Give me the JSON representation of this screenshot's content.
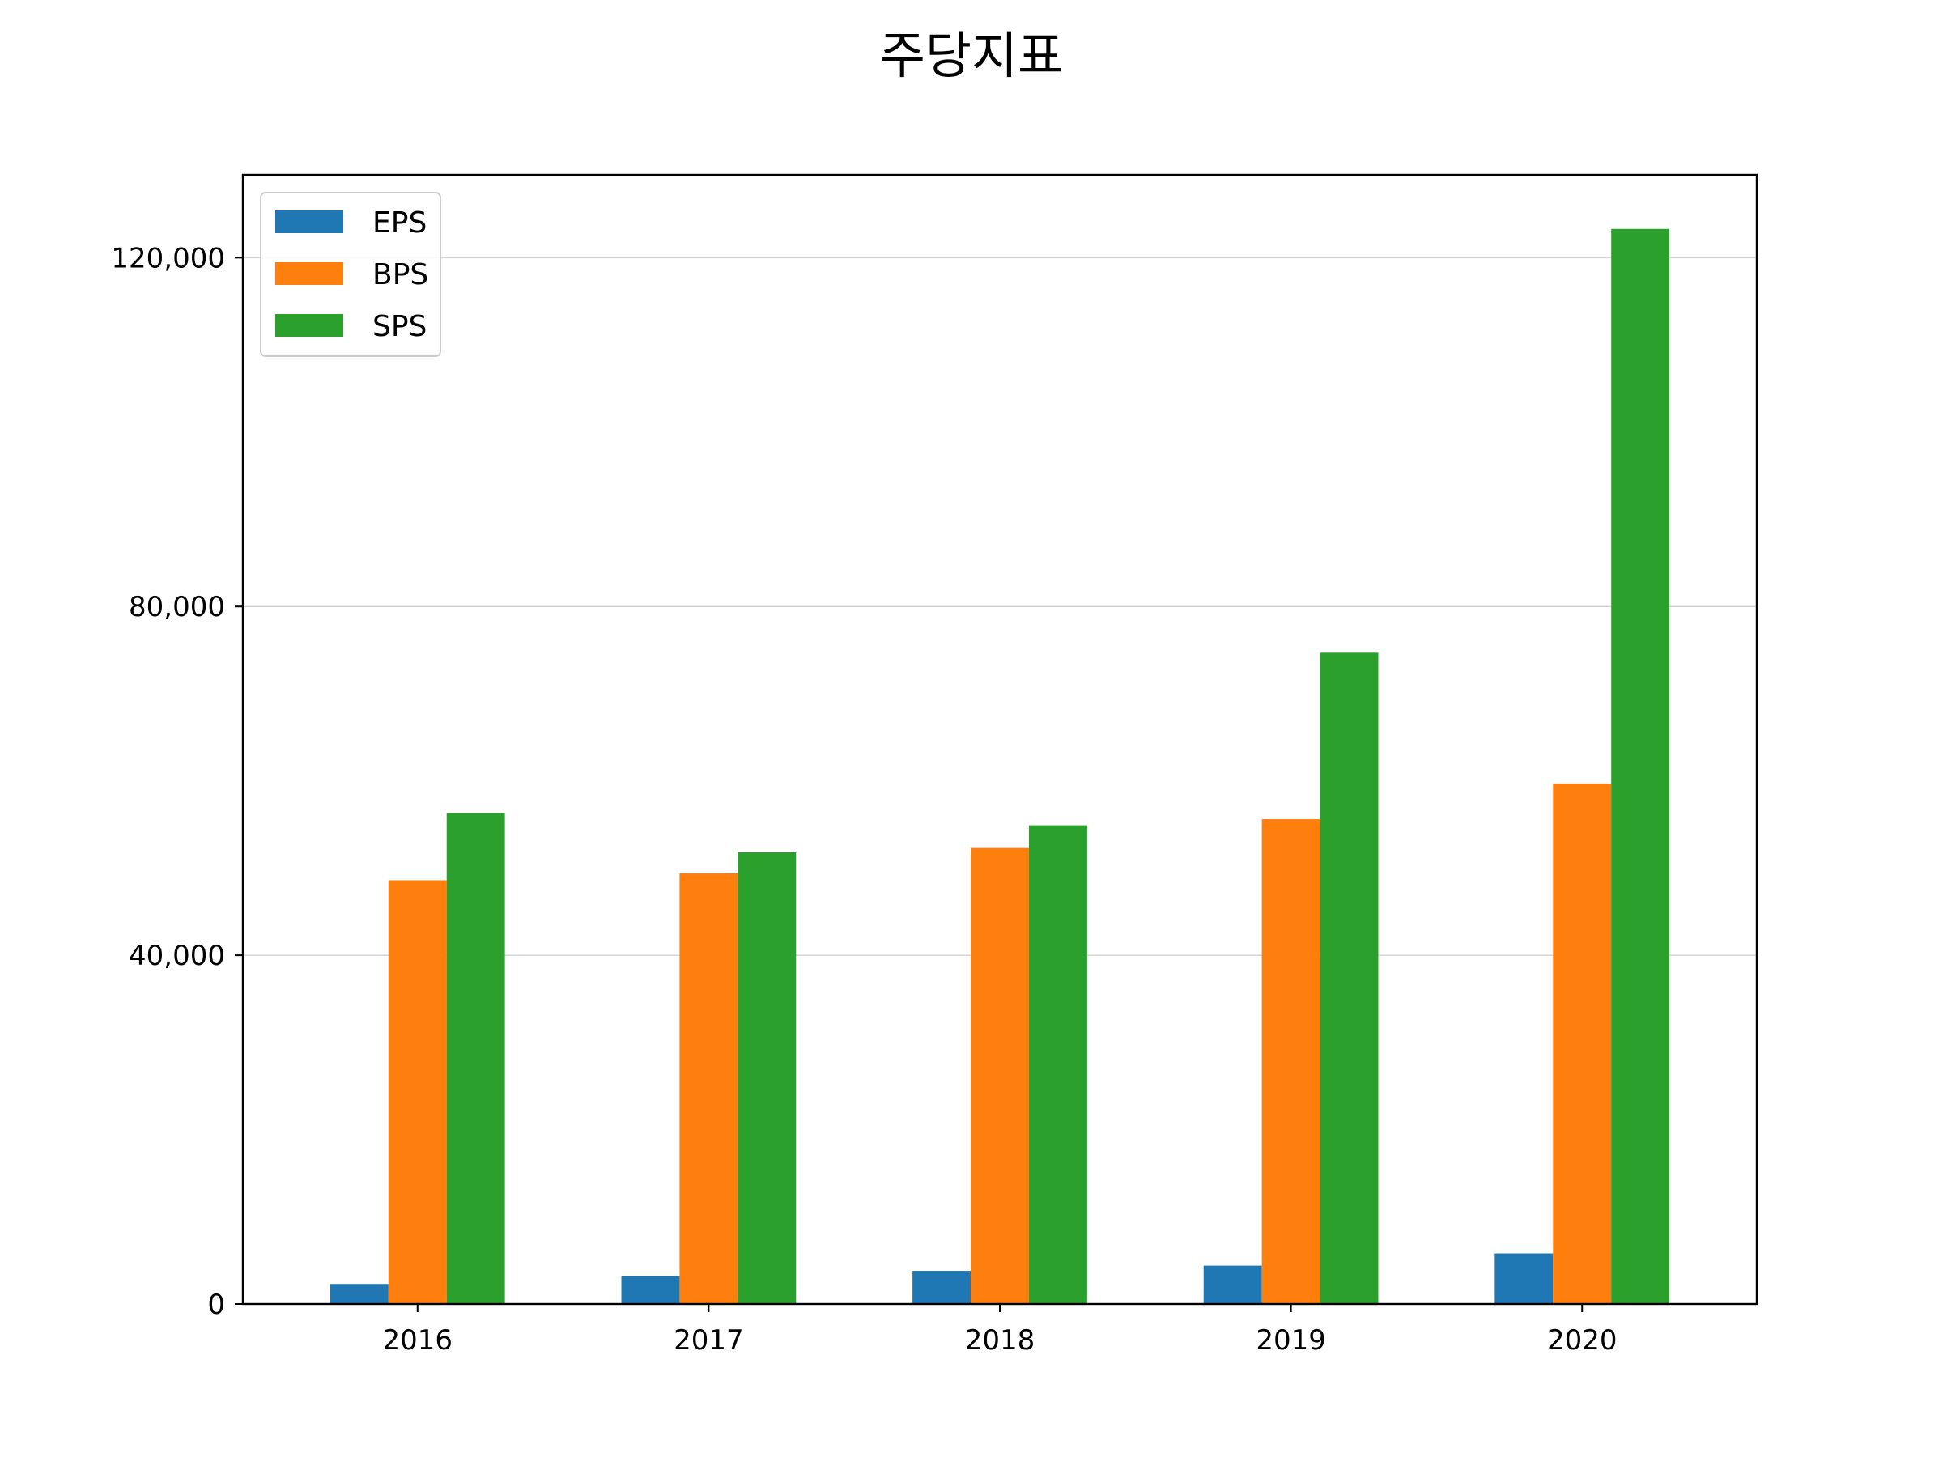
{
  "chart_data": {
    "type": "bar",
    "title": "주당지표",
    "xlabel": "",
    "ylabel": "",
    "categories": [
      "2016",
      "2017",
      "2018",
      "2019",
      "2020"
    ],
    "series": [
      {
        "name": "EPS",
        "color": "#1f77b4",
        "values": [
          2300,
          3200,
          3800,
          4400,
          5800
        ]
      },
      {
        "name": "BPS",
        "color": "#ff7f0e",
        "values": [
          48600,
          49400,
          52300,
          55600,
          59700
        ]
      },
      {
        "name": "SPS",
        "color": "#2ca02c",
        "values": [
          56300,
          51800,
          54900,
          74700,
          123300
        ]
      }
    ],
    "ylim": [
      0,
      129500
    ],
    "yticks": [
      0,
      40000,
      80000,
      120000
    ],
    "ytick_labels": [
      "0",
      "40,000",
      "80,000",
      "120,000"
    ],
    "grid": "horizontal",
    "legend": "top-left"
  }
}
